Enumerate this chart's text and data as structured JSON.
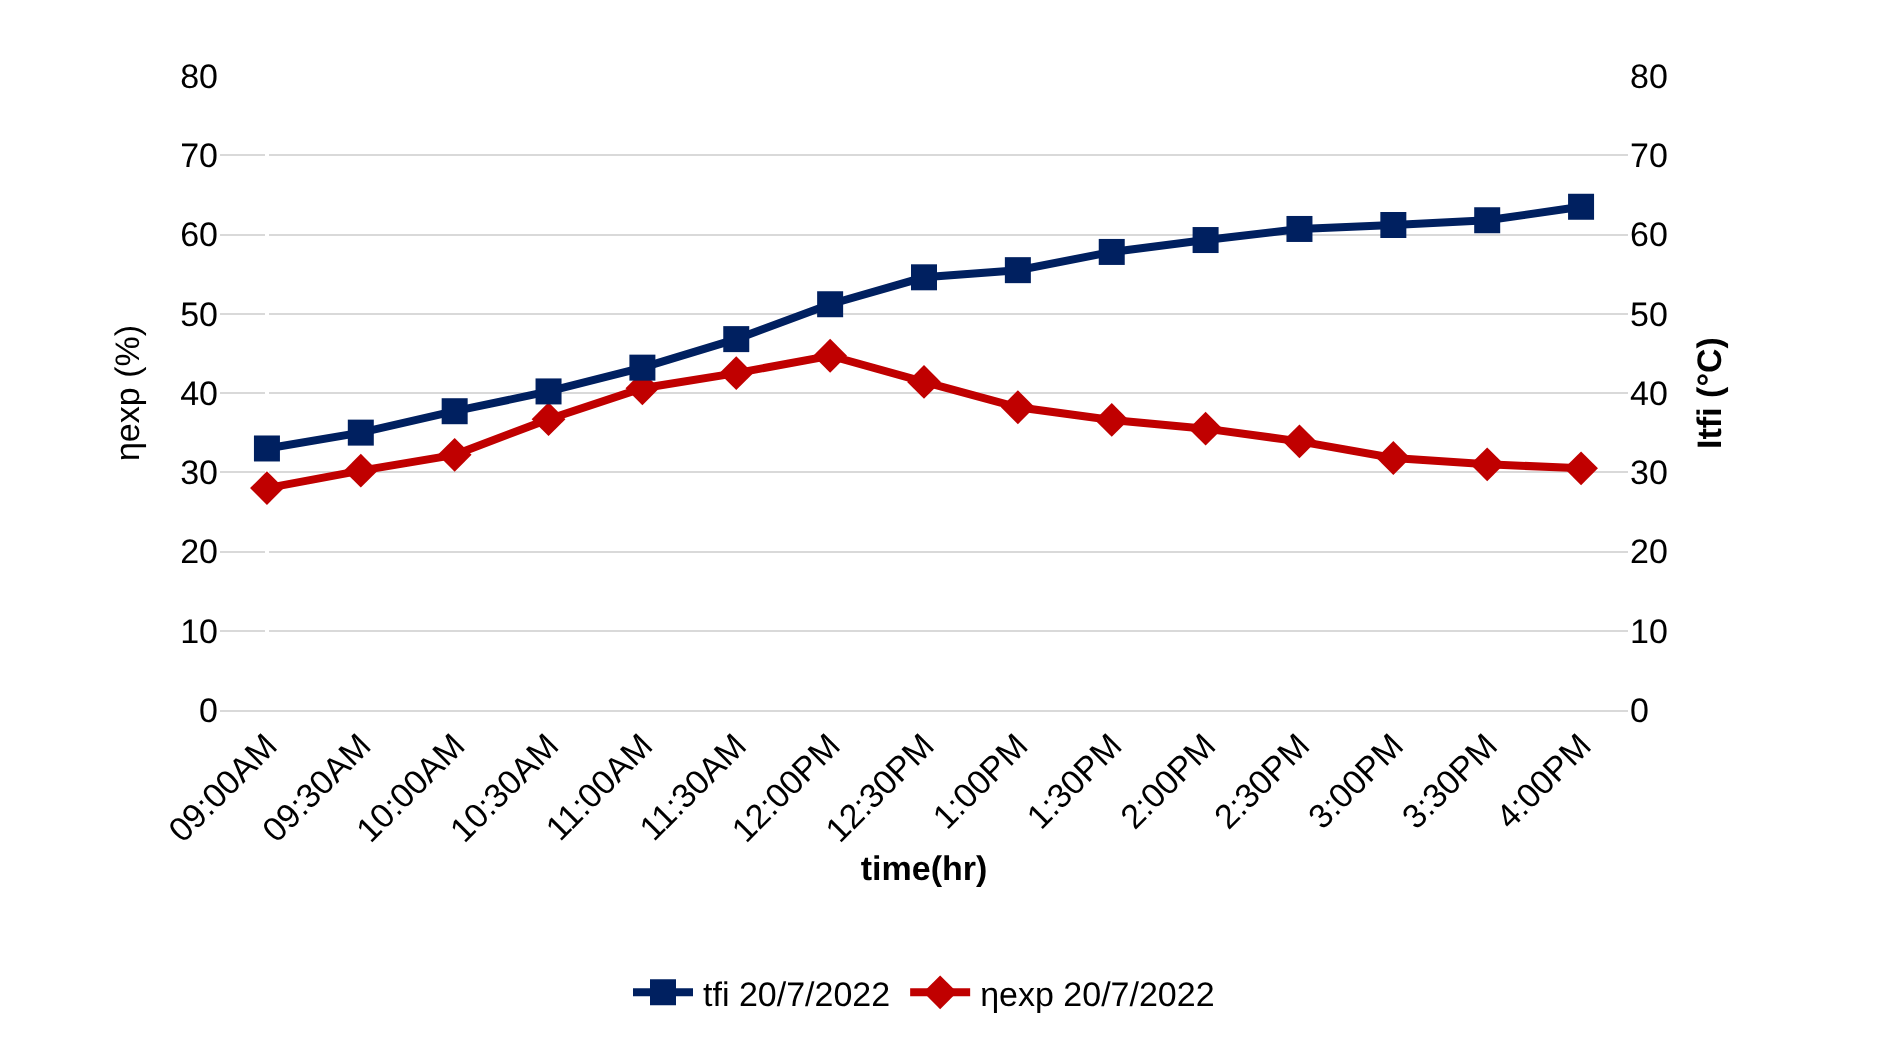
{
  "chart_data": {
    "type": "line",
    "xlabel": "time(hr)",
    "ylabel": "ηexp (%)",
    "y2label": "Itfi (°C)",
    "categories": [
      "09:00AM",
      "09:30AM",
      "10:00AM",
      "10:30AM",
      "11:00AM",
      "11:30AM",
      "12:00PM",
      "12:30PM",
      "1:00PM",
      "1:30PM",
      "2:00PM",
      "2:30PM",
      "3:00PM",
      "3:30PM",
      "4:00PM"
    ],
    "series": [
      {
        "name": "tfi 20/7/2022",
        "color": "#002060",
        "marker": "square",
        "axis": "y2",
        "values": [
          33,
          35,
          37.7,
          40.2,
          43.2,
          46.8,
          51.2,
          54.6,
          55.5,
          57.8,
          59.3,
          60.7,
          61.2,
          61.8,
          63.5
        ]
      },
      {
        "name": "ηexp 20/7/2022",
        "color": "#c00000",
        "marker": "diamond",
        "values": [
          28,
          30.2,
          32.2,
          36.7,
          40.6,
          42.5,
          44.7,
          41.4,
          38.2,
          36.6,
          35.5,
          33.9,
          31.8,
          31,
          30.5
        ]
      }
    ],
    "ylim": [
      0,
      80
    ],
    "yticks": [
      0,
      10,
      20,
      30,
      40,
      50,
      60,
      70,
      80
    ],
    "y2lim": [
      0,
      80
    ],
    "y2ticks": [
      0,
      10,
      20,
      30,
      40,
      50,
      60,
      70,
      80
    ],
    "grid": "y",
    "legend": "bottom",
    "line_style": "solid"
  }
}
